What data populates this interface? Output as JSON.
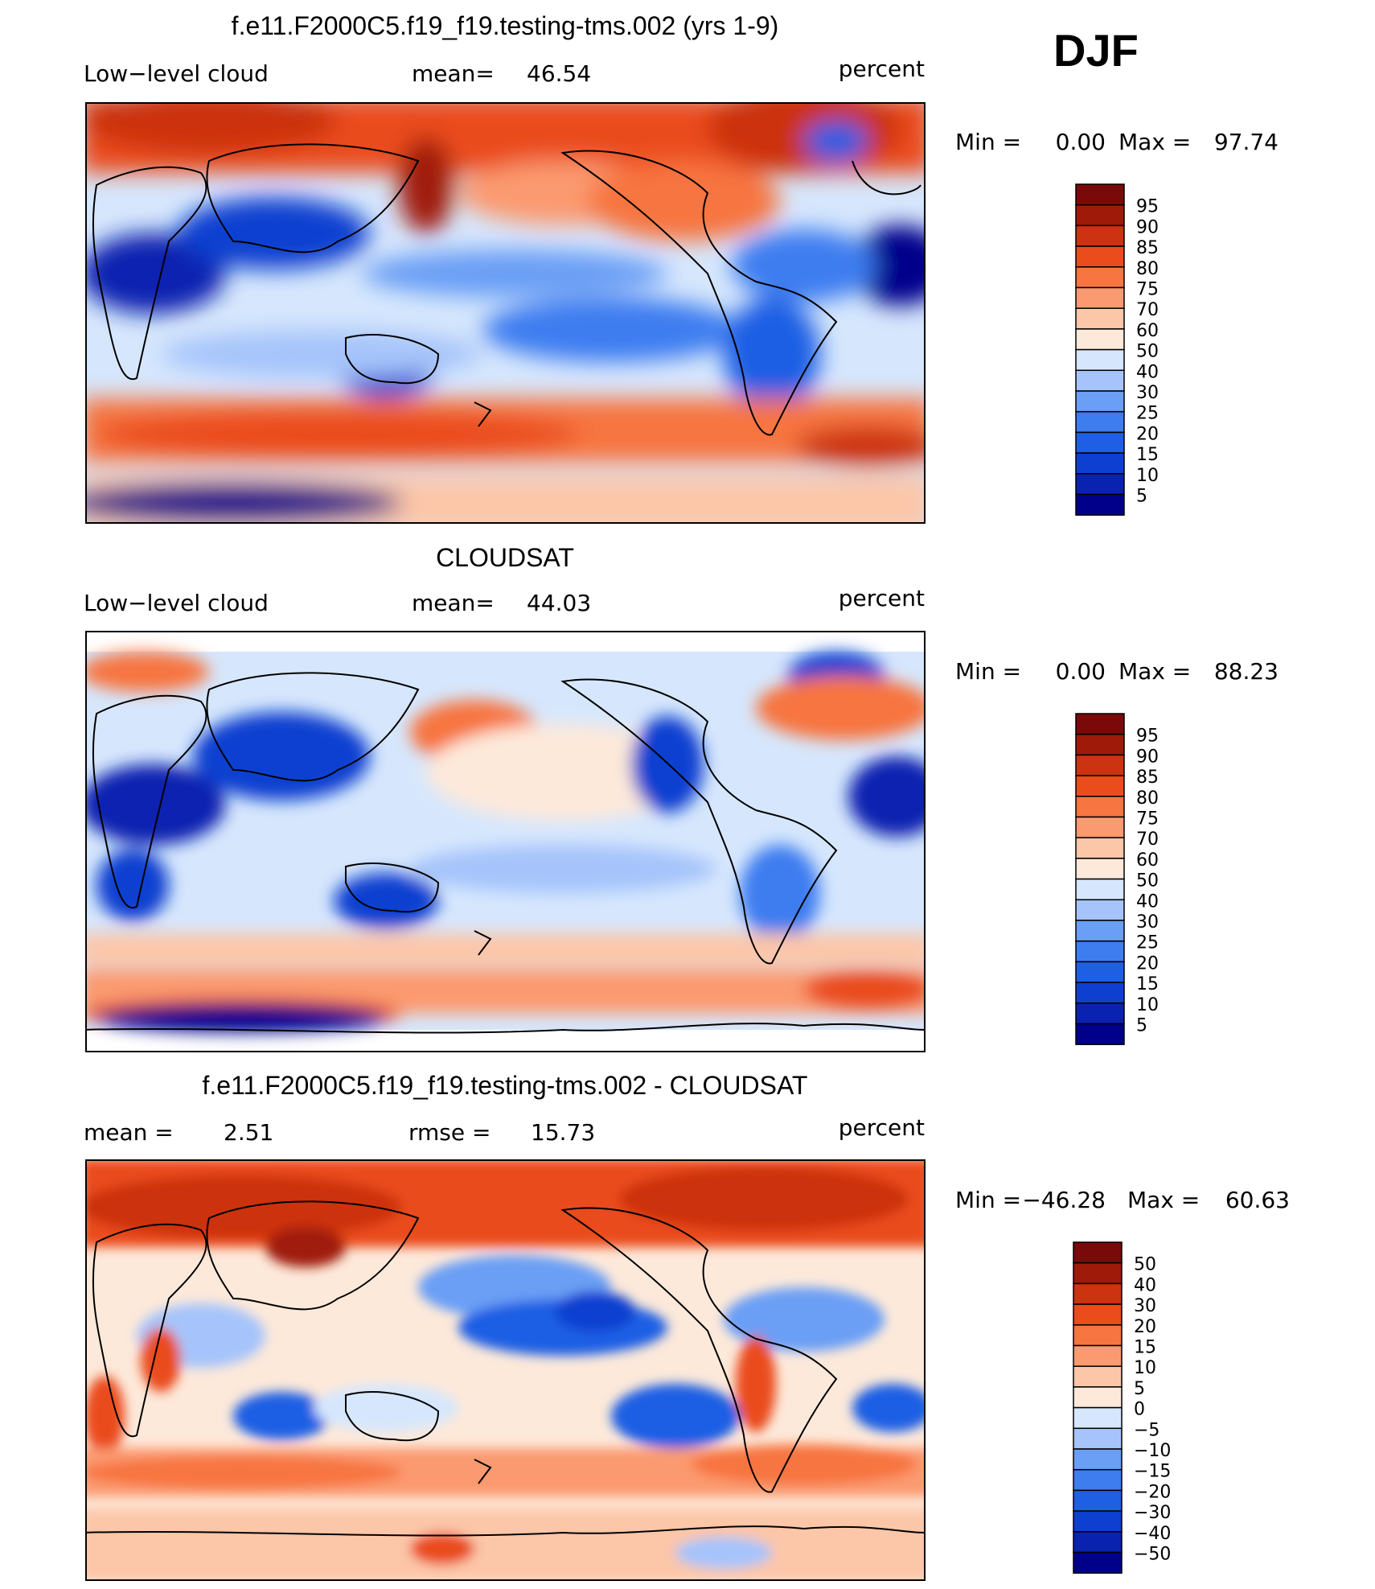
{
  "season": "DJF",
  "colors": {
    "seq": [
      "#00008b",
      "#0a22b0",
      "#0d3fd0",
      "#1f5fe4",
      "#3d7df0",
      "#6b9ff5",
      "#a6c4fb",
      "#d6e7fd",
      "#fde9da",
      "#fcc6a8",
      "#fb9a70",
      "#f77540",
      "#ea4c1c",
      "#cc3311",
      "#a01a0a",
      "#7a0a0a"
    ],
    "diff": [
      "#00008b",
      "#0a22b0",
      "#0d3fd0",
      "#1f5fe4",
      "#3d7df0",
      "#6b9ff5",
      "#a6c4fb",
      "#d6e7fd",
      "#fde9da",
      "#fcc6a8",
      "#fb9a70",
      "#f77540",
      "#ea4c1c",
      "#cc3311",
      "#a01a0a",
      "#7a0a0a"
    ]
  },
  "chart_data": [
    {
      "type": "heatmap",
      "title": "f.e11.F2000C5.f19_f19.testing-tms.002 (yrs 1-9)",
      "left_label": "Low−level cloud",
      "center_label": "mean=",
      "center_value": "46.54",
      "units": "percent",
      "min_label": "Min =",
      "min_value": "0.00",
      "max_label": "Max =",
      "max_value": "97.74",
      "colorbar_ticks": [
        "95",
        "90",
        "85",
        "80",
        "75",
        "70",
        "60",
        "50",
        "40",
        "30",
        "25",
        "20",
        "15",
        "10",
        "5"
      ],
      "palette": "seq"
    },
    {
      "type": "heatmap",
      "title": "CLOUDSAT",
      "left_label": "Low−level cloud",
      "center_label": "mean=",
      "center_value": "44.03",
      "units": "percent",
      "min_label": "Min =",
      "min_value": "0.00",
      "max_label": "Max =",
      "max_value": "88.23",
      "colorbar_ticks": [
        "95",
        "90",
        "85",
        "80",
        "75",
        "70",
        "60",
        "50",
        "40",
        "30",
        "25",
        "20",
        "15",
        "10",
        "5"
      ],
      "palette": "seq"
    },
    {
      "type": "heatmap",
      "title": "f.e11.F2000C5.f19_f19.testing-tms.002 - CLOUDSAT",
      "left_label": "mean =",
      "left_value": "2.51",
      "center_label": "rmse =",
      "center_value": "15.73",
      "units": "percent",
      "min_label": "Min =",
      "min_value": "−46.28",
      "max_label": "Max =",
      "max_value": "60.63",
      "colorbar_ticks": [
        "50",
        "40",
        "30",
        "20",
        "15",
        "10",
        "5",
        "0",
        "−5",
        "−10",
        "−15",
        "−20",
        "−30",
        "−40",
        "−50"
      ],
      "palette": "diff"
    }
  ]
}
